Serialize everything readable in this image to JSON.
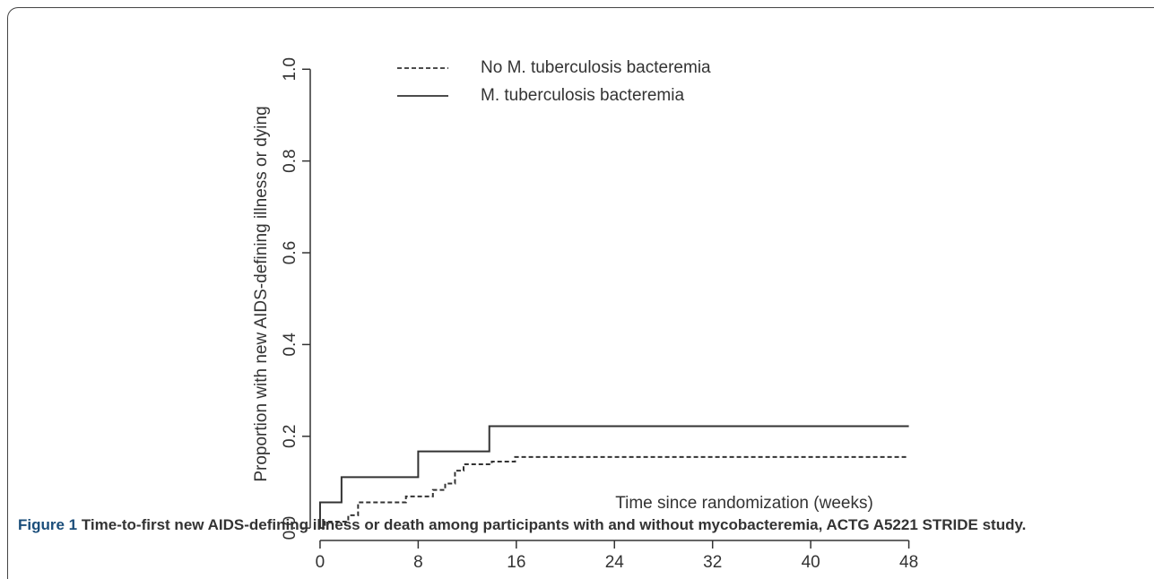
{
  "chart_data": {
    "type": "line",
    "step": true,
    "y_label": "Proportion with new AIDS-defining illness or dying",
    "x_label": "Time since randomization (weeks)",
    "xlim": [
      -0.8,
      49.2
    ],
    "xticks": [
      0,
      8,
      16,
      24,
      32,
      40,
      48
    ],
    "ylim": [
      -0.027,
      1.02
    ],
    "yticks": [
      {
        "value": 0,
        "label": "0.0"
      },
      0.2,
      0.4,
      0.6,
      0.8,
      {
        "value": 1,
        "label": "1.0"
      }
    ],
    "series": [
      {
        "name": "No M. tuberculosis bacteremia",
        "color": "#333333",
        "dash": true,
        "x": [
          0,
          0.4,
          0.4,
          2.3,
          2.3,
          3.1,
          3.1,
          7,
          7,
          9.2,
          9.2,
          10.2,
          10.2,
          11,
          11,
          11.7,
          11.7,
          14,
          14,
          15.9,
          15.9,
          48
        ],
        "values": [
          0,
          0,
          0.014,
          0.014,
          0.028,
          0.028,
          0.056,
          0.056,
          0.069,
          0.069,
          0.083,
          0.083,
          0.097,
          0.097,
          0.125,
          0.125,
          0.139,
          0.139,
          0.145,
          0.145,
          0.155,
          0.155
        ]
      },
      {
        "name": "M. tuberculosis bacteremia",
        "color": "#333333",
        "dash": false,
        "x": [
          0,
          0,
          1.75,
          1.75,
          8,
          8,
          13.8,
          13.8,
          48
        ],
        "values": [
          0,
          0.056,
          0.056,
          0.111,
          0.111,
          0.167,
          0.167,
          0.222,
          0.222
        ]
      }
    ]
  },
  "caption": {
    "label": "Figure 1",
    "text": "Time-to-first new AIDS-defining illness or death among participants with and without mycobacteremia, ACTG A5221 STRIDE study."
  }
}
